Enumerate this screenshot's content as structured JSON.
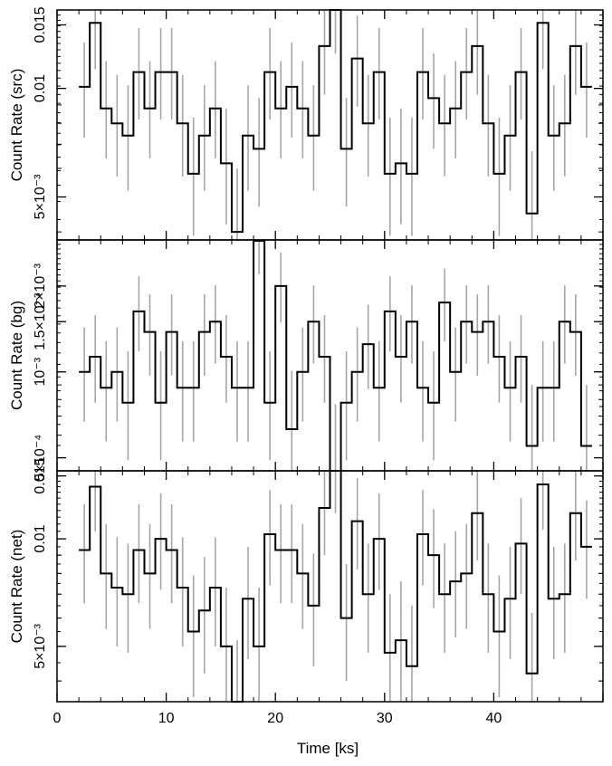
{
  "chart_data": {
    "type": "line",
    "style": "step-with-error-bars",
    "x_label": "Time [ks]",
    "x_range": [
      0,
      50
    ],
    "x_ticks": [
      0,
      10,
      20,
      30,
      40
    ],
    "bin_centers": [
      2.5,
      3.5,
      4.5,
      5.5,
      6.5,
      7.5,
      8.5,
      9.5,
      10.5,
      11.5,
      12.5,
      13.5,
      14.5,
      15.5,
      16.5,
      17.5,
      18.5,
      19.5,
      20.5,
      21.5,
      22.5,
      23.5,
      24.5,
      25.5,
      26.5,
      27.5,
      28.5,
      29.5,
      30.5,
      31.5,
      32.5,
      33.5,
      34.5,
      35.5,
      36.5,
      37.5,
      38.5,
      39.5,
      40.5,
      41.5,
      42.5,
      43.5,
      44.5,
      45.5,
      46.5,
      47.5,
      48.5
    ],
    "panels": [
      {
        "name": "src",
        "y_label": "Count Rate (src)",
        "y_scale": "log",
        "y_range": [
          0.0038,
          0.0165
        ],
        "y_ticks": [
          {
            "value": 0.005,
            "label": "5×10⁻³"
          },
          {
            "value": 0.01,
            "label": "0.01"
          },
          {
            "value": 0.015,
            "label": "0.015"
          }
        ],
        "values": [
          0.0101,
          0.0152,
          0.0088,
          0.008,
          0.0074,
          0.0111,
          0.0088,
          0.0111,
          0.0111,
          0.008,
          0.0058,
          0.0074,
          0.0088,
          0.0062,
          0.004,
          0.0074,
          0.0068,
          0.0111,
          0.0088,
          0.0101,
          0.0088,
          0.0074,
          0.0131,
          0.0168,
          0.0068,
          0.0121,
          0.008,
          0.0111,
          0.0058,
          0.0062,
          0.0058,
          0.0111,
          0.0094,
          0.008,
          0.0088,
          0.0111,
          0.0131,
          0.008,
          0.0058,
          0.0074,
          0.0111,
          0.0045,
          0.0152,
          0.0074,
          0.008,
          0.0131,
          0.0101
        ],
        "error_low": [
          0.0073,
          0.0113,
          0.0064,
          0.0057,
          0.0052,
          0.0082,
          0.0064,
          0.0082,
          0.0082,
          0.0057,
          0.0039,
          0.0052,
          0.0064,
          0.0042,
          0.0038,
          0.0052,
          0.0047,
          0.0082,
          0.0064,
          0.0073,
          0.0064,
          0.0052,
          0.0096,
          0.0125,
          0.0047,
          0.0089,
          0.0057,
          0.0082,
          0.0039,
          0.0042,
          0.0039,
          0.0082,
          0.0068,
          0.0057,
          0.0064,
          0.0082,
          0.0096,
          0.0057,
          0.0039,
          0.0052,
          0.0082,
          0.0038,
          0.0113,
          0.0052,
          0.0057,
          0.0096,
          0.0073
        ],
        "error_high": [
          0.0134,
          0.0199,
          0.0119,
          0.0109,
          0.0102,
          0.0147,
          0.0119,
          0.0147,
          0.0147,
          0.0109,
          0.0083,
          0.0102,
          0.0119,
          0.0088,
          0.006,
          0.0102,
          0.0094,
          0.0147,
          0.0119,
          0.0134,
          0.0119,
          0.0102,
          0.0171,
          0.0217,
          0.0094,
          0.0159,
          0.0109,
          0.0147,
          0.0083,
          0.0088,
          0.0083,
          0.0147,
          0.0125,
          0.0109,
          0.0119,
          0.0147,
          0.0171,
          0.0109,
          0.0083,
          0.0102,
          0.0147,
          0.0067,
          0.0199,
          0.0102,
          0.0109,
          0.0171,
          0.0134
        ]
      },
      {
        "name": "bg",
        "y_label": "Count Rate (bg)",
        "y_scale": "log",
        "y_range": [
          0.00045,
          0.0029
        ],
        "y_ticks": [
          {
            "value": 0.0005,
            "label": "5×10⁻⁴"
          },
          {
            "value": 0.001,
            "label": "10⁻³"
          },
          {
            "value": 0.0015,
            "label": "1.5×10⁻³"
          },
          {
            "value": 0.002,
            "label": "2×10⁻³"
          }
        ],
        "values": [
          0.001,
          0.00113,
          0.00088,
          0.001,
          0.00078,
          0.00163,
          0.00138,
          0.00078,
          0.00138,
          0.00088,
          0.00088,
          0.00138,
          0.0015,
          0.00113,
          0.00088,
          0.00088,
          0.00288,
          0.00078,
          0.002,
          0.00063,
          0.001,
          0.0015,
          0.00113,
          0.00045,
          0.00078,
          0.001,
          0.00125,
          0.00088,
          0.00163,
          0.00113,
          0.0015,
          0.00088,
          0.00078,
          0.00175,
          0.001,
          0.0015,
          0.00138,
          0.0015,
          0.00113,
          0.00088,
          0.00113,
          0.00055,
          0.00088,
          0.00088,
          0.0015,
          0.00138,
          0.00055
        ],
        "error_low": [
          0.00067,
          0.00078,
          0.00057,
          0.00067,
          0.00049,
          0.00118,
          0.00097,
          0.00049,
          0.00097,
          0.00057,
          0.00057,
          0.00097,
          0.00107,
          0.00078,
          0.00057,
          0.00057,
          0.0022,
          0.00049,
          0.00149,
          0.00045,
          0.00067,
          0.00107,
          0.00078,
          0.00045,
          0.00049,
          0.00067,
          0.00087,
          0.00057,
          0.00118,
          0.00078,
          0.00107,
          0.00057,
          0.00049,
          0.00128,
          0.00067,
          0.00107,
          0.00097,
          0.00107,
          0.00078,
          0.00057,
          0.00078,
          0.00045,
          0.00057,
          0.00057,
          0.00107,
          0.00097,
          0.00045
        ],
        "error_high": [
          0.00143,
          0.00158,
          0.00128,
          0.00143,
          0.00118,
          0.00216,
          0.00187,
          0.00118,
          0.00187,
          0.00128,
          0.00128,
          0.00187,
          0.00201,
          0.00158,
          0.00128,
          0.00128,
          0.0029,
          0.00118,
          0.00262,
          0.00101,
          0.00143,
          0.00201,
          0.00158,
          0.00077,
          0.00118,
          0.00143,
          0.00172,
          0.00128,
          0.00216,
          0.00158,
          0.00201,
          0.00128,
          0.00118,
          0.0023,
          0.00143,
          0.00201,
          0.00187,
          0.00201,
          0.00158,
          0.00128,
          0.00158,
          0.0009,
          0.00128,
          0.00128,
          0.00201,
          0.00187,
          0.0009
        ]
      },
      {
        "name": "net",
        "y_label": "Count Rate (net)",
        "y_scale": "log",
        "y_range": [
          0.0035,
          0.0155
        ],
        "y_ticks": [
          {
            "value": 0.005,
            "label": "5×10⁻³"
          },
          {
            "value": 0.01,
            "label": "0.01"
          },
          {
            "value": 0.015,
            "label": "0.015"
          }
        ],
        "values": [
          0.0093,
          0.014,
          0.008,
          0.0073,
          0.007,
          0.0093,
          0.008,
          0.01,
          0.0093,
          0.0073,
          0.0055,
          0.0063,
          0.0073,
          0.005,
          0.0032,
          0.0068,
          0.005,
          0.0103,
          0.0093,
          0.0093,
          0.008,
          0.0065,
          0.0122,
          0.0157,
          0.006,
          0.0112,
          0.007,
          0.01,
          0.0048,
          0.0052,
          0.0044,
          0.0103,
          0.009,
          0.007,
          0.0076,
          0.008,
          0.0118,
          0.007,
          0.0055,
          0.0068,
          0.0097,
          0.0042,
          0.0142,
          0.0068,
          0.007,
          0.0118,
          0.0095
        ],
        "error_low": [
          0.0066,
          0.0105,
          0.0056,
          0.005,
          0.0048,
          0.0066,
          0.0056,
          0.0072,
          0.0066,
          0.005,
          0.0036,
          0.0042,
          0.005,
          0.0035,
          0.0035,
          0.0046,
          0.0035,
          0.0074,
          0.0066,
          0.0066,
          0.0056,
          0.0044,
          0.009,
          0.0118,
          0.004,
          0.0082,
          0.0048,
          0.0072,
          0.0035,
          0.0035,
          0.0035,
          0.0074,
          0.0064,
          0.0048,
          0.0053,
          0.0056,
          0.0087,
          0.0048,
          0.0036,
          0.0046,
          0.007,
          0.0035,
          0.0106,
          0.0046,
          0.0048,
          0.0087,
          0.0068
        ],
        "error_high": [
          0.0125,
          0.0182,
          0.011,
          0.0101,
          0.0097,
          0.0125,
          0.011,
          0.0134,
          0.0125,
          0.0101,
          0.0079,
          0.0089,
          0.0101,
          0.0073,
          0.0052,
          0.0095,
          0.0073,
          0.0137,
          0.0125,
          0.0125,
          0.011,
          0.0091,
          0.016,
          0.0201,
          0.0085,
          0.0148,
          0.0097,
          0.0134,
          0.007,
          0.0076,
          0.0065,
          0.0137,
          0.0121,
          0.0097,
          0.0105,
          0.011,
          0.0155,
          0.0097,
          0.0079,
          0.0095,
          0.013,
          0.0062,
          0.0184,
          0.0095,
          0.0097,
          0.0155,
          0.0128
        ]
      }
    ]
  }
}
